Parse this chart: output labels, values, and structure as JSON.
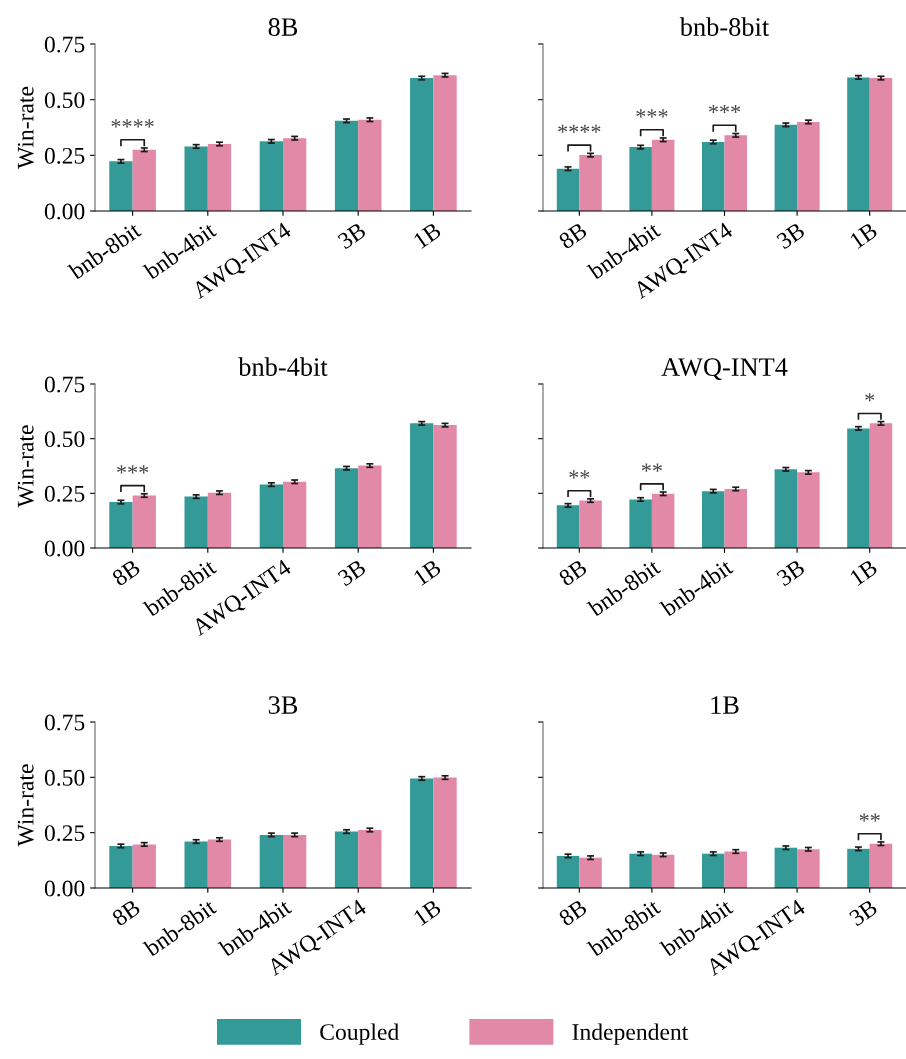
{
  "chart_data": [
    {
      "type": "bar",
      "title": "8B",
      "ylabel": "Win-rate",
      "categories": [
        "bnb-8bit",
        "bnb-4bit",
        "AWQ-INT4",
        "3B",
        "1B"
      ],
      "ylim": [
        0,
        0.75
      ],
      "yticks": [
        {
          "value": 0,
          "label": "0.00"
        },
        {
          "value": 0.25,
          "label": "0.25"
        },
        {
          "value": 0.5,
          "label": "0.50"
        },
        {
          "value": 0.75,
          "label": "0.75"
        }
      ],
      "legend": "bottom",
      "series": [
        {
          "name": "Coupled",
          "color": "#339a97",
          "values": [
            0.223,
            0.29,
            0.313,
            0.405,
            0.597
          ],
          "errors": [
            0.008,
            0.008,
            0.008,
            0.008,
            0.008
          ]
        },
        {
          "name": "Independent",
          "color": "#e189a6",
          "values": [
            0.275,
            0.301,
            0.327,
            0.41,
            0.61
          ],
          "errors": [
            0.008,
            0.008,
            0.008,
            0.008,
            0.008
          ]
        }
      ],
      "annotations": [
        {
          "text": "****",
          "x": "bnb-8bit",
          "y": 0.275
        }
      ]
    },
    {
      "type": "bar",
      "title": "bnb-8bit",
      "categories": [
        "8B",
        "bnb-4bit",
        "AWQ-INT4",
        "3B",
        "1B"
      ],
      "ylim": [
        0,
        0.75
      ],
      "yticks": [
        {
          "value": 0,
          "label": null
        },
        {
          "value": 0.25,
          "label": null
        },
        {
          "value": 0.5,
          "label": null
        },
        {
          "value": 0.75,
          "label": null
        }
      ],
      "tick_labels": "x",
      "series": [
        {
          "color": "#339a97",
          "values": [
            0.19,
            0.287,
            0.31,
            0.387,
            0.6
          ],
          "errors": [
            0.008,
            0.008,
            0.008,
            0.008,
            0.008
          ]
        },
        {
          "color": "#e189a6",
          "values": [
            0.251,
            0.32,
            0.34,
            0.4,
            0.597
          ],
          "errors": [
            0.008,
            0.008,
            0.008,
            0.008,
            0.008
          ]
        }
      ],
      "annotations": [
        {
          "text": "****",
          "x": "8B",
          "y": 0.251
        },
        {
          "text": "***",
          "x": "bnb-4bit",
          "y": 0.32
        },
        {
          "text": "***",
          "x": "AWQ-INT4",
          "y": 0.34
        }
      ]
    },
    {
      "type": "bar",
      "title": "bnb-4bit",
      "ylabel": "Win-rate",
      "categories": [
        "8B",
        "bnb-8bit",
        "AWQ-INT4",
        "3B",
        "1B"
      ],
      "ylim": [
        0,
        0.75
      ],
      "yticks": [
        {
          "value": 0,
          "label": "0.00"
        },
        {
          "value": 0.25,
          "label": "0.25"
        },
        {
          "value": 0.5,
          "label": "0.50"
        },
        {
          "value": 0.75,
          "label": "0.75"
        }
      ],
      "series": [
        {
          "color": "#339a97",
          "values": [
            0.21,
            0.235,
            0.29,
            0.365,
            0.57
          ],
          "errors": [
            0.008,
            0.008,
            0.008,
            0.008,
            0.008
          ]
        },
        {
          "color": "#e189a6",
          "values": [
            0.24,
            0.253,
            0.303,
            0.377,
            0.562
          ],
          "errors": [
            0.008,
            0.008,
            0.008,
            0.008,
            0.008
          ]
        }
      ],
      "annotations": [
        {
          "text": "***",
          "x": "8B",
          "y": 0.24
        }
      ]
    },
    {
      "type": "bar",
      "title": "AWQ-INT4",
      "categories": [
        "8B",
        "bnb-8bit",
        "bnb-4bit",
        "3B",
        "1B"
      ],
      "ylim": [
        0,
        0.75
      ],
      "yticks": [
        {
          "value": 0,
          "label": null
        },
        {
          "value": 0.25,
          "label": null
        },
        {
          "value": 0.5,
          "label": null
        },
        {
          "value": 0.75,
          "label": null
        }
      ],
      "tick_labels": "x",
      "series": [
        {
          "color": "#339a97",
          "values": [
            0.195,
            0.222,
            0.26,
            0.36,
            0.547
          ],
          "errors": [
            0.008,
            0.008,
            0.008,
            0.008,
            0.008
          ]
        },
        {
          "color": "#e189a6",
          "values": [
            0.217,
            0.248,
            0.27,
            0.346,
            0.57
          ],
          "errors": [
            0.008,
            0.008,
            0.008,
            0.008,
            0.008
          ]
        }
      ],
      "annotations": [
        {
          "text": "**",
          "x": "8B",
          "y": 0.217
        },
        {
          "text": "**",
          "x": "bnb-8bit",
          "y": 0.248
        },
        {
          "text": "*",
          "x": "1B",
          "y": 0.57
        }
      ]
    },
    {
      "type": "bar",
      "title": "3B",
      "ylabel": "Win-rate",
      "categories": [
        "8B",
        "bnb-8bit",
        "bnb-4bit",
        "AWQ-INT4",
        "1B"
      ],
      "ylim": [
        0,
        0.75
      ],
      "yticks": [
        {
          "value": 0,
          "label": "0.00"
        },
        {
          "value": 0.25,
          "label": "0.25"
        },
        {
          "value": 0.5,
          "label": "0.50"
        },
        {
          "value": 0.75,
          "label": "0.75"
        }
      ],
      "series": [
        {
          "color": "#339a97",
          "values": [
            0.19,
            0.21,
            0.24,
            0.255,
            0.495
          ],
          "errors": [
            0.008,
            0.008,
            0.008,
            0.008,
            0.008
          ]
        },
        {
          "color": "#e189a6",
          "values": [
            0.197,
            0.219,
            0.24,
            0.262,
            0.499
          ],
          "errors": [
            0.008,
            0.008,
            0.008,
            0.008,
            0.008
          ]
        }
      ]
    },
    {
      "type": "bar",
      "title": "1B",
      "categories": [
        "8B",
        "bnb-8bit",
        "bnb-4bit",
        "AWQ-INT4",
        "3B"
      ],
      "ylim": [
        0,
        0.75
      ],
      "yticks": [
        {
          "value": 0,
          "label": null
        },
        {
          "value": 0.25,
          "label": null
        },
        {
          "value": 0.5,
          "label": null
        },
        {
          "value": 0.75,
          "label": null
        }
      ],
      "tick_labels": "x",
      "series": [
        {
          "color": "#339a97",
          "values": [
            0.145,
            0.155,
            0.155,
            0.182,
            0.177
          ],
          "errors": [
            0.008,
            0.008,
            0.008,
            0.008,
            0.008
          ]
        },
        {
          "color": "#e189a6",
          "values": [
            0.137,
            0.15,
            0.165,
            0.175,
            0.2
          ],
          "errors": [
            0.008,
            0.008,
            0.008,
            0.008,
            0.008
          ]
        }
      ],
      "annotations": [
        {
          "text": "**",
          "x": "3B",
          "y": 0.2
        }
      ]
    }
  ]
}
